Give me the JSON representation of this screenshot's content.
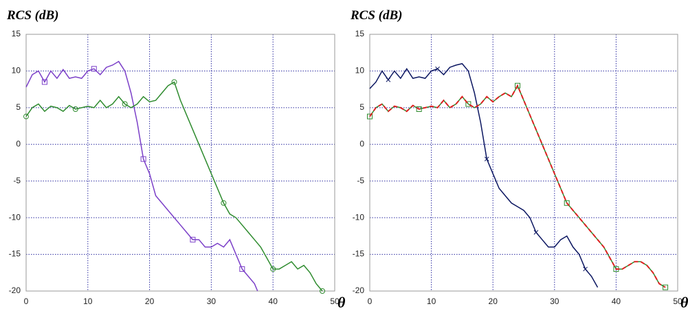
{
  "chart_data": [
    {
      "type": "line",
      "title": "RCS (dB)",
      "x_label": "θ",
      "xlim": [
        0,
        50
      ],
      "ylim": [
        -20,
        15
      ],
      "xticks": [
        0,
        10,
        20,
        30,
        40,
        50
      ],
      "yticks": [
        -20,
        -15,
        -10,
        -5,
        0,
        5,
        10,
        15
      ],
      "grid": true,
      "series": [
        {
          "color": "#7b3fc8",
          "marker": "square",
          "dash": false,
          "x": [
            0,
            1,
            2,
            3,
            4,
            5,
            6,
            7,
            8,
            9,
            10,
            11,
            12,
            13,
            14,
            15,
            16,
            17,
            18,
            19,
            20,
            21,
            22,
            23,
            24,
            25,
            26,
            27,
            28,
            29,
            30,
            31,
            32,
            33,
            34,
            35,
            36,
            37,
            37.5
          ],
          "values": [
            7.8,
            9.5,
            10,
            8.5,
            10,
            9,
            10.2,
            9,
            9.2,
            9,
            10,
            10.3,
            9.5,
            10.5,
            10.8,
            11.3,
            10,
            7,
            3,
            -2,
            -4,
            -7,
            -8,
            -9,
            -10,
            -11,
            -12,
            -13,
            -13,
            -14,
            -14,
            -13.5,
            -14,
            -13,
            -15,
            -17,
            -18,
            -19,
            -20
          ]
        },
        {
          "color": "#2e8b2e",
          "marker": "circle",
          "dash": false,
          "x": [
            0,
            1,
            2,
            3,
            4,
            5,
            6,
            7,
            8,
            9,
            10,
            11,
            12,
            13,
            14,
            15,
            16,
            17,
            18,
            19,
            20,
            21,
            22,
            23,
            24,
            25,
            26,
            27,
            28,
            29,
            30,
            31,
            32,
            33,
            34,
            35,
            36,
            37,
            38,
            39,
            40,
            41,
            42,
            43,
            44,
            45,
            46,
            47,
            48
          ],
          "values": [
            3.8,
            5,
            5.5,
            4.5,
            5.2,
            5,
            4.5,
            5.3,
            4.8,
            5,
            5.2,
            5,
            6,
            5,
            5.5,
            6.5,
            5.5,
            5,
            5.5,
            6.5,
            5.8,
            6,
            7,
            8,
            8.5,
            6,
            4,
            2,
            0,
            -2,
            -4,
            -6,
            -8,
            -9.5,
            -10,
            -11,
            -12,
            -13,
            -14,
            -15.5,
            -17,
            -17,
            -16.5,
            -16,
            -17,
            -16.5,
            -17.5,
            -19,
            -20
          ]
        }
      ]
    },
    {
      "type": "line",
      "title": "RCS (dB)",
      "x_label": "θ",
      "xlim": [
        0,
        50
      ],
      "ylim": [
        -20,
        15
      ],
      "xticks": [
        0,
        10,
        20,
        30,
        40,
        50
      ],
      "yticks": [
        -20,
        -15,
        -10,
        -5,
        0,
        5,
        10,
        15
      ],
      "grid": true,
      "series": [
        {
          "color": "#0a1560",
          "marker": "x",
          "dash": false,
          "x": [
            0,
            1,
            2,
            3,
            4,
            5,
            6,
            7,
            8,
            9,
            10,
            11,
            12,
            13,
            14,
            15,
            16,
            17,
            18,
            19,
            20,
            21,
            22,
            23,
            24,
            25,
            26,
            27,
            28,
            29,
            30,
            31,
            32,
            33,
            34,
            35,
            36,
            37
          ],
          "values": [
            7.6,
            8.5,
            10,
            8.8,
            10,
            9,
            10.3,
            9,
            9.2,
            9,
            10,
            10.3,
            9.5,
            10.5,
            10.8,
            11,
            10,
            7,
            3,
            -2,
            -4,
            -6,
            -7,
            -8,
            -8.5,
            -9,
            -10,
            -12,
            -13,
            -14,
            -14,
            -13,
            -12.5,
            -14,
            -15,
            -17,
            -18,
            -19.5
          ]
        },
        {
          "color": "#2e8b2e",
          "marker": "square",
          "dash": false,
          "x": [
            0,
            1,
            2,
            3,
            4,
            5,
            6,
            7,
            8,
            9,
            10,
            11,
            12,
            13,
            14,
            15,
            16,
            17,
            18,
            19,
            20,
            21,
            22,
            23,
            24,
            25,
            26,
            27,
            28,
            29,
            30,
            31,
            32,
            33,
            34,
            35,
            36,
            37,
            38,
            39,
            40,
            41,
            42,
            43,
            44,
            45,
            46,
            47,
            48
          ],
          "values": [
            3.8,
            5,
            5.5,
            4.5,
            5.2,
            5,
            4.5,
            5.3,
            4.8,
            5,
            5.2,
            5,
            6,
            5,
            5.5,
            6.5,
            5.5,
            5,
            5.5,
            6.5,
            5.8,
            6.5,
            7,
            6.5,
            8,
            6,
            4,
            2,
            0,
            -2,
            -4,
            -6,
            -8,
            -9,
            -10,
            -11,
            -12,
            -13,
            -14,
            -15.5,
            -17,
            -17,
            -16.5,
            -16,
            -16,
            -16.5,
            -17.5,
            -19,
            -19.5
          ]
        },
        {
          "color": "#e02020",
          "marker": "none",
          "dash": true,
          "x": [
            0,
            1,
            2,
            3,
            4,
            5,
            6,
            7,
            8,
            9,
            10,
            11,
            12,
            13,
            14,
            15,
            16,
            17,
            18,
            19,
            20,
            21,
            22,
            23,
            24,
            25,
            26,
            27,
            28,
            29,
            30,
            31,
            32,
            33,
            34,
            35,
            36,
            37,
            38,
            39,
            40,
            41,
            42,
            43,
            44,
            45,
            46,
            47,
            48
          ],
          "values": [
            3.8,
            5,
            5.5,
            4.5,
            5.2,
            5,
            4.5,
            5.3,
            4.8,
            5,
            5.2,
            5,
            6,
            5,
            5.5,
            6.5,
            5.5,
            5,
            5.5,
            6.5,
            5.8,
            6.5,
            7,
            6.5,
            8,
            6,
            4,
            2,
            0,
            -2,
            -4,
            -6,
            -8,
            -9,
            -10,
            -11,
            -12,
            -13,
            -14,
            -15.5,
            -17,
            -17,
            -16.5,
            -16,
            -16,
            -16.5,
            -17.5,
            -19,
            -19.5
          ]
        }
      ]
    }
  ]
}
